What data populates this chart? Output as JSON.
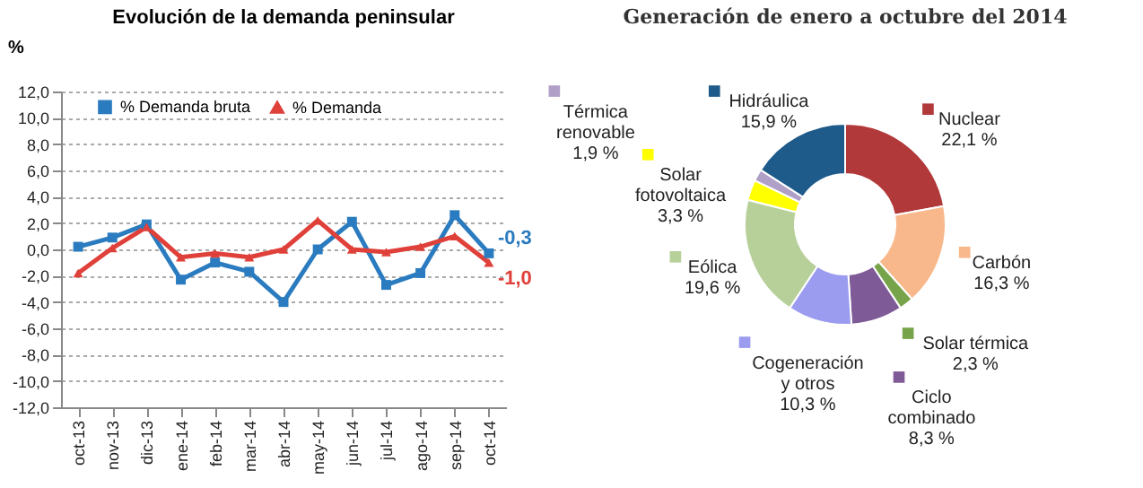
{
  "chart_data": [
    {
      "type": "line",
      "title": "Evolución de la demanda peninsular",
      "ylabel": "%",
      "categories": [
        "oct-13",
        "nov-13",
        "dic-13",
        "ene-14",
        "feb-14",
        "mar-14",
        "abr-14",
        "may-14",
        "jun-14",
        "jul-14",
        "ago-14",
        "sep-14",
        "oct-14"
      ],
      "series": [
        {
          "name": "% Demanda bruta",
          "color": "#2a7bbf",
          "marker": "square",
          "values": [
            0.2,
            0.9,
            1.9,
            -2.3,
            -1.0,
            -1.7,
            -4.0,
            0.0,
            2.1,
            -2.7,
            -1.8,
            2.6,
            -0.3
          ],
          "value_labels": [
            null,
            null,
            null,
            null,
            null,
            null,
            null,
            null,
            null,
            null,
            null,
            null,
            "-0,3"
          ]
        },
        {
          "name": "% Demanda",
          "color": "#e0403a",
          "marker": "triangle",
          "values": [
            -1.8,
            0.1,
            1.7,
            -0.6,
            -0.3,
            -0.6,
            0.0,
            2.2,
            0.0,
            -0.2,
            0.2,
            1.0,
            -1.0
          ],
          "value_labels": [
            null,
            null,
            null,
            null,
            null,
            null,
            null,
            null,
            null,
            null,
            null,
            null,
            "-1,0"
          ]
        }
      ],
      "ylim": [
        -12,
        12
      ],
      "yticks": [
        {
          "value": -12,
          "label": "-12,0"
        },
        {
          "value": -10,
          "label": "-10,0"
        },
        {
          "value": -8,
          "label": "-8,0"
        },
        {
          "value": -6,
          "label": "-6,0"
        },
        {
          "value": -4,
          "label": "-4,0"
        },
        {
          "value": -2,
          "label": "-2,0"
        },
        {
          "value": 0,
          "label": "0,0"
        },
        {
          "value": 2,
          "label": "2,0"
        },
        {
          "value": 4,
          "label": "4,0"
        },
        {
          "value": 6,
          "label": "6,0"
        },
        {
          "value": 8,
          "label": "8,0"
        },
        {
          "value": 10,
          "label": "10,0"
        },
        {
          "value": 12,
          "label": "12,0"
        }
      ],
      "grid": "y",
      "legend": "top"
    },
    {
      "type": "donut",
      "title": "Generación de enero a octubre del 2014",
      "categories": [
        "Nuclear",
        "Carbón",
        "Solar térmica",
        "Ciclo combinado",
        "Cogeneración y otros",
        "Eólica",
        "Solar fotovoltaica",
        "Térmica renovable",
        "Hidráulica"
      ],
      "values": [
        22.1,
        16.3,
        2.3,
        8.3,
        10.3,
        19.6,
        3.3,
        1.9,
        15.9
      ],
      "value_labels": [
        "22,1 %",
        "16,3 %",
        "2,3 %",
        "8,3 %",
        "10,3 %",
        "19,6 %",
        "3,3 %",
        "1,9 %",
        "15,9 %"
      ],
      "legend": "bottom left",
      "colors": [
        "#b2393a",
        "#f9b88b",
        "#77a34a",
        "#7e5a96",
        "#9b9cf0",
        "#b7d09a",
        "#ffff00",
        "#b0a0c8",
        "#1e5a8a"
      ]
    }
  ]
}
